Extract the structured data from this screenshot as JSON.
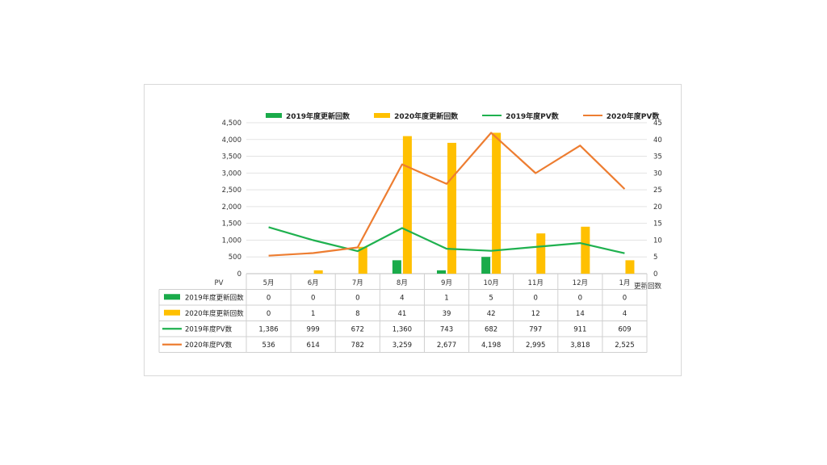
{
  "chart_data": {
    "type": "bar",
    "categories": [
      "5月",
      "6月",
      "7月",
      "8月",
      "9月",
      "10月",
      "11月",
      "12月",
      "1月"
    ],
    "series": [
      {
        "name": "2019年度更新回数",
        "kind": "bar",
        "axis": "right",
        "color": "#1aab4a",
        "values": [
          0,
          0,
          0,
          4,
          1,
          5,
          0,
          0,
          0
        ],
        "table_values": [
          "0",
          "0",
          "0",
          "4",
          "1",
          "5",
          "0",
          "0",
          "0"
        ]
      },
      {
        "name": "2020年度更新回数",
        "kind": "bar",
        "axis": "right",
        "color": "#ffc000",
        "values": [
          0,
          1,
          8,
          41,
          39,
          42,
          12,
          14,
          4
        ],
        "table_values": [
          "0",
          "1",
          "8",
          "41",
          "39",
          "42",
          "12",
          "14",
          "4"
        ]
      },
      {
        "name": "2019年度PV数",
        "kind": "line",
        "axis": "left",
        "color": "#1fb14f",
        "values": [
          1386,
          999,
          672,
          1360,
          743,
          682,
          797,
          911,
          609
        ],
        "table_values": [
          "1,386",
          "999",
          "672",
          "1,360",
          "743",
          "682",
          "797",
          "911",
          "609"
        ]
      },
      {
        "name": "2020年度PV数",
        "kind": "line",
        "axis": "left",
        "color": "#ed7d31",
        "values": [
          536,
          614,
          782,
          3259,
          2677,
          4198,
          2995,
          3818,
          2525
        ],
        "table_values": [
          "536",
          "614",
          "782",
          "3,259",
          "2,677",
          "4,198",
          "2,995",
          "3,818",
          "2,525"
        ]
      }
    ],
    "y_left": {
      "label": "PV",
      "ylim": [
        0,
        4500
      ],
      "ticks": [
        "4,500",
        "4,000",
        "3,500",
        "3,000",
        "2,500",
        "2,000",
        "1,500",
        "1,000",
        "500",
        "0"
      ]
    },
    "y_right": {
      "label": "更新回数",
      "ylim": [
        0,
        45
      ],
      "ticks": [
        "45",
        "40",
        "35",
        "30",
        "25",
        "20",
        "15",
        "10",
        "5",
        "0"
      ]
    },
    "grid": true,
    "legend_position": "top",
    "data_table": true
  }
}
